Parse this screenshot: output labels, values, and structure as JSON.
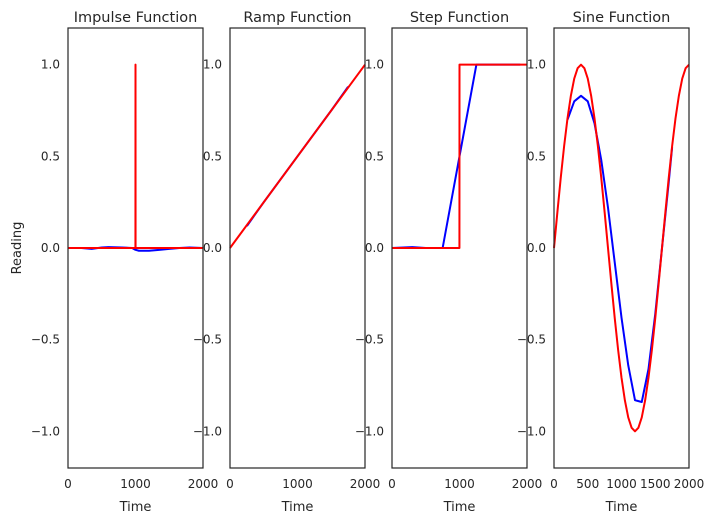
{
  "chart_data": [
    {
      "type": "line",
      "title": "Impulse Function",
      "xlabel": "Time",
      "ylabel": "Reading",
      "xlim": [
        0,
        2000
      ],
      "ylim": [
        -1.2,
        1.2
      ],
      "xticks": [
        "0",
        "1000",
        "2000"
      ],
      "yticks": [
        "1.0",
        "0.5",
        "0.0",
        "−0.5",
        "−1.0"
      ],
      "grid": false,
      "series": [
        {
          "color": "#0000ff",
          "x": [
            0,
            200,
            350,
            500,
            600,
            800,
            950,
            1000,
            1050,
            1200,
            1350,
            1500,
            1650,
            1800,
            2000
          ],
          "y": [
            0,
            0,
            -0.005,
            0.003,
            0.005,
            0.003,
            0.0,
            -0.01,
            -0.015,
            -0.015,
            -0.01,
            -0.005,
            0.0,
            0.003,
            0
          ]
        },
        {
          "color": "#ff0000",
          "x": [
            0,
            999,
            1000,
            1001,
            2000
          ],
          "y": [
            0,
            0,
            1.0,
            0,
            0
          ]
        }
      ]
    },
    {
      "type": "line",
      "title": "Ramp Function",
      "xlabel": "Time",
      "ylabel": "",
      "xlim": [
        0,
        2000
      ],
      "ylim": [
        -1.2,
        1.2
      ],
      "xticks": [
        "0",
        "1000",
        "2000"
      ],
      "yticks": [
        "1.0",
        "0.5",
        "0.0",
        "−0.5",
        "−1.0"
      ],
      "grid": false,
      "series": [
        {
          "color": "#0000ff",
          "x": [
            250,
            500,
            1000,
            1500,
            1750
          ],
          "y": [
            0.12,
            0.25,
            0.5,
            0.75,
            0.88
          ]
        },
        {
          "color": "#ff0000",
          "x": [
            0,
            2000
          ],
          "y": [
            0,
            1.0
          ]
        }
      ]
    },
    {
      "type": "line",
      "title": "Step Function",
      "xlabel": "Time",
      "ylabel": "",
      "xlim": [
        0,
        2000
      ],
      "ylim": [
        -1.2,
        1.2
      ],
      "xticks": [
        "0",
        "1000",
        "2000"
      ],
      "yticks": [
        "1.0",
        "0.5",
        "0.0",
        "−0.5",
        "−1.0"
      ],
      "grid": false,
      "series": [
        {
          "color": "#0000ff",
          "x": [
            0,
            300,
            500,
            750,
            1250,
            1500,
            1750,
            1900
          ],
          "y": [
            0,
            0.005,
            0,
            0,
            1.0,
            1.0,
            1.0,
            1.0
          ]
        },
        {
          "color": "#ff0000",
          "x": [
            0,
            999,
            1000,
            2000
          ],
          "y": [
            0,
            0,
            1.0,
            1.0
          ]
        }
      ]
    },
    {
      "type": "line",
      "title": "Sine Function",
      "xlabel": "Time",
      "ylabel": "",
      "xlim": [
        0,
        2000
      ],
      "ylim": [
        -1.2,
        1.2
      ],
      "xticks": [
        "0",
        "500",
        "1000",
        "1500",
        "2000"
      ],
      "yticks": [
        "1.0",
        "0.5",
        "0.0",
        "−0.5",
        "−1.0"
      ],
      "grid": false,
      "series": [
        {
          "color": "#0000ff",
          "x": [
            200,
            300,
            400,
            500,
            600,
            700,
            800,
            900,
            1000,
            1100,
            1200,
            1300,
            1400,
            1500,
            1600,
            1700,
            1750
          ],
          "y": [
            0.7,
            0.8,
            0.83,
            0.8,
            0.68,
            0.48,
            0.22,
            -0.08,
            -0.38,
            -0.64,
            -0.83,
            -0.84,
            -0.66,
            -0.36,
            0.0,
            0.36,
            0.55
          ]
        },
        {
          "color": "#ff0000",
          "x": [
            0,
            50,
            100,
            150,
            200,
            250,
            300,
            350,
            400,
            450,
            500,
            550,
            600,
            650,
            700,
            750,
            800,
            850,
            900,
            950,
            1000,
            1050,
            1100,
            1150,
            1200,
            1250,
            1300,
            1350,
            1400,
            1450,
            1500,
            1550,
            1600,
            1650,
            1700,
            1750,
            1800,
            1850,
            1900,
            1950,
            2000
          ],
          "y": [
            0.0,
            0.195,
            0.383,
            0.556,
            0.707,
            0.831,
            0.924,
            0.981,
            1.0,
            0.981,
            0.924,
            0.831,
            0.707,
            0.556,
            0.383,
            0.195,
            0.0,
            -0.195,
            -0.383,
            -0.556,
            -0.707,
            -0.831,
            -0.924,
            -0.981,
            -1.0,
            -0.981,
            -0.924,
            -0.831,
            -0.707,
            -0.556,
            -0.383,
            -0.195,
            0.0,
            0.195,
            0.383,
            0.556,
            0.707,
            0.831,
            0.924,
            0.981,
            1.0
          ]
        }
      ]
    }
  ]
}
